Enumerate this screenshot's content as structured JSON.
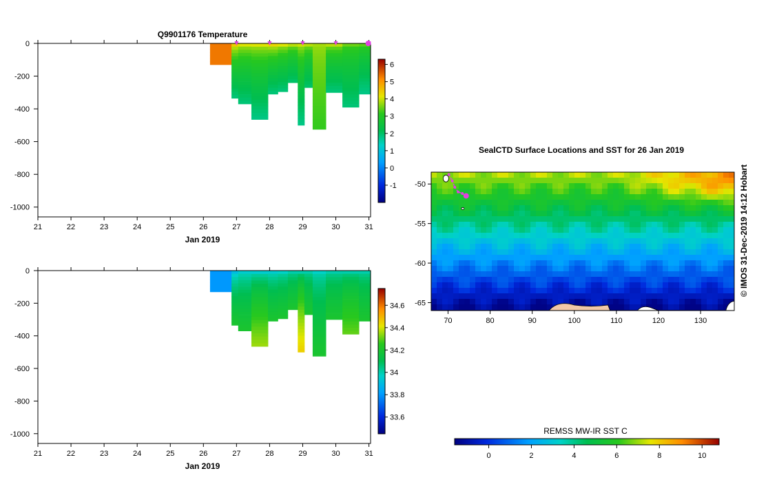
{
  "chart_data": [
    {
      "type": "heatmap",
      "title": "Q9901176  Temperature",
      "xlabel": "Jan 2019",
      "x_ticks": [
        "21",
        "22",
        "23",
        "24",
        "25",
        "26",
        "27",
        "28",
        "29",
        "30",
        "31"
      ],
      "y_ticks": [
        "0",
        "-200",
        "-400",
        "-600",
        "-800",
        "-1000"
      ],
      "xlim": [
        21,
        31.05
      ],
      "ylim": [
        -1060,
        0
      ],
      "colorbar": {
        "min": -2,
        "max": 6.3,
        "ticks": [
          "6",
          "5",
          "4",
          "3",
          "2",
          "1",
          "0",
          "-1"
        ],
        "tick_values": [
          6,
          5,
          4,
          3,
          2,
          1,
          0,
          -1
        ]
      },
      "markers_x": [
        27,
        28,
        29,
        30,
        31
      ],
      "profiles": [
        {
          "x0": 26.2,
          "x1": 26.85,
          "depth": 130,
          "surface": 5.3,
          "deep": 5.3
        },
        {
          "x0": 26.85,
          "x1": 27.05,
          "depth": 335,
          "surface": 4.4,
          "deep": 1.9
        },
        {
          "x0": 27.05,
          "x1": 27.45,
          "depth": 370,
          "surface": 4.1,
          "deep": 1.9
        },
        {
          "x0": 27.45,
          "x1": 27.95,
          "depth": 465,
          "surface": 4.1,
          "deep": 1.8
        },
        {
          "x0": 27.95,
          "x1": 28.25,
          "depth": 310,
          "surface": 4.3,
          "deep": 1.9
        },
        {
          "x0": 28.25,
          "x1": 28.55,
          "depth": 295,
          "surface": 4.1,
          "deep": 1.9
        },
        {
          "x0": 28.55,
          "x1": 28.85,
          "depth": 240,
          "surface": 3.9,
          "deep": 2.0
        },
        {
          "x0": 28.85,
          "x1": 29.05,
          "depth": 500,
          "surface": 4.0,
          "deep": 1.8
        },
        {
          "x0": 29.05,
          "x1": 29.3,
          "depth": 270,
          "surface": 3.9,
          "deep": 2.0
        },
        {
          "x0": 29.3,
          "x1": 29.7,
          "depth": 525,
          "surface": 3.8,
          "deep": 3.2
        },
        {
          "x0": 29.7,
          "x1": 30.2,
          "depth": 300,
          "surface": 3.9,
          "deep": 1.9
        },
        {
          "x0": 30.2,
          "x1": 30.7,
          "depth": 390,
          "surface": 3.5,
          "deep": 1.9
        },
        {
          "x0": 30.7,
          "x1": 31.05,
          "depth": 310,
          "surface": 3.4,
          "deep": 1.8
        }
      ]
    },
    {
      "type": "heatmap",
      "title": "",
      "xlabel": "Jan 2019",
      "x_ticks": [
        "21",
        "22",
        "23",
        "24",
        "25",
        "26",
        "27",
        "28",
        "29",
        "30",
        "31"
      ],
      "y_ticks": [
        "0",
        "-200",
        "-400",
        "-600",
        "-800",
        "-1000"
      ],
      "xlim": [
        21,
        31.05
      ],
      "ylim": [
        -1060,
        0
      ],
      "colorbar": {
        "min": 33.45,
        "max": 34.75,
        "ticks": [
          "34.6",
          "34.4",
          "34.2",
          "34",
          "33.8",
          "33.6"
        ],
        "tick_values": [
          34.6,
          34.4,
          34.2,
          34.0,
          33.8,
          33.6
        ]
      },
      "profiles": [
        {
          "x0": 26.2,
          "x1": 26.85,
          "depth": 130,
          "surface": 33.8,
          "deep": 33.8
        },
        {
          "x0": 26.85,
          "x1": 27.05,
          "depth": 335,
          "surface": 33.9,
          "deep": 34.2
        },
        {
          "x0": 27.05,
          "x1": 27.45,
          "depth": 370,
          "surface": 33.95,
          "deep": 34.2
        },
        {
          "x0": 27.45,
          "x1": 27.95,
          "depth": 465,
          "surface": 33.95,
          "deep": 34.35
        },
        {
          "x0": 27.95,
          "x1": 28.25,
          "depth": 310,
          "surface": 33.95,
          "deep": 34.2
        },
        {
          "x0": 28.25,
          "x1": 28.55,
          "depth": 295,
          "surface": 33.97,
          "deep": 34.2
        },
        {
          "x0": 28.55,
          "x1": 28.85,
          "depth": 240,
          "surface": 34.0,
          "deep": 34.2
        },
        {
          "x0": 28.85,
          "x1": 29.05,
          "depth": 500,
          "surface": 34.0,
          "deep": 34.45
        },
        {
          "x0": 29.05,
          "x1": 29.3,
          "depth": 270,
          "surface": 34.0,
          "deep": 34.2
        },
        {
          "x0": 29.3,
          "x1": 29.7,
          "depth": 525,
          "surface": 33.97,
          "deep": 34.2
        },
        {
          "x0": 29.7,
          "x1": 30.2,
          "depth": 300,
          "surface": 34.0,
          "deep": 34.2
        },
        {
          "x0": 30.2,
          "x1": 30.7,
          "depth": 390,
          "surface": 34.0,
          "deep": 34.3
        },
        {
          "x0": 30.7,
          "x1": 31.05,
          "depth": 310,
          "surface": 34.0,
          "deep": 34.2
        }
      ]
    },
    {
      "type": "heatmap",
      "title": "SealCTD Surface Locations and SST for 26 Jan 2019",
      "x_ticks": [
        "70",
        "80",
        "90",
        "100",
        "110",
        "120",
        "130"
      ],
      "x_tick_values": [
        70,
        80,
        90,
        100,
        110,
        120,
        130
      ],
      "y_ticks": [
        "-50",
        "-55",
        "-60",
        "-65"
      ],
      "y_tick_values": [
        -50,
        -55,
        -60,
        -65
      ],
      "xlim": [
        66,
        138
      ],
      "ylim": [
        -66,
        -48.5
      ],
      "side_label": "© IMOS 31-Dec-2019 14:12 Hobart",
      "colorbar": {
        "label": "REMSS MW-IR SST C",
        "min": -1.6,
        "max": 10.8,
        "ticks": [
          "0",
          "2",
          "4",
          "6",
          "8",
          "10"
        ],
        "tick_values": [
          0,
          2,
          4,
          6,
          8,
          10
        ]
      },
      "track": [
        {
          "lon": 70.2,
          "lat": -48.8
        },
        {
          "lon": 71.0,
          "lat": -49.6
        },
        {
          "lon": 71.6,
          "lat": -50.4
        },
        {
          "lon": 72.4,
          "lat": -51.0
        },
        {
          "lon": 73.4,
          "lat": -51.2
        },
        {
          "lon": 74.3,
          "lat": -51.5
        }
      ]
    }
  ]
}
